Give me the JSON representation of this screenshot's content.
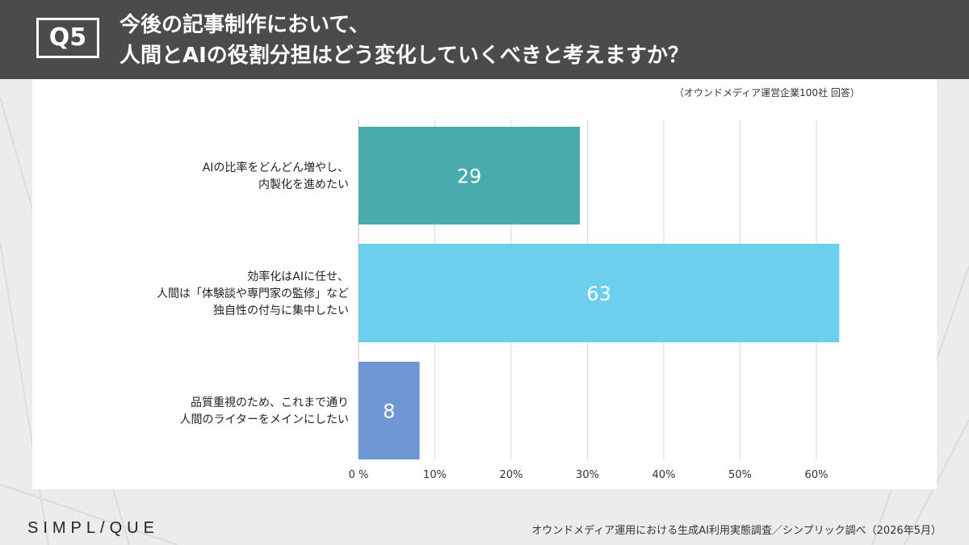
{
  "header": {
    "badge": "Q5",
    "title_line1": "今後の記事制作において、",
    "title_line2": "人間とAIの役割分担はどう変化していくべきと考えますか？"
  },
  "respondents_note": "（オウンドメディア運営企業100社 回答）",
  "footer": {
    "logo": "SIMPL/QUE",
    "source": "オウンドメディア運用における生成AI利用実態調査／シンプリック調べ（2026年5月）"
  },
  "colors": {
    "header_bg": "#4b4b4b",
    "bar_teal": "#4aabad",
    "bar_sky": "#6dcfee",
    "bar_blue": "#6e97d4"
  },
  "chart_data": {
    "type": "bar",
    "orientation": "horizontal",
    "categories": [
      [
        "AIの比率をどんどん増やし、",
        "内製化を進めたい"
      ],
      [
        "効率化はAIに任せ、",
        "人間は「体験談や専門家の監修」など",
        "独自性の付与に集中したい"
      ],
      [
        "品質重視のため、これまで通り",
        "人間のライターをメインにしたい"
      ]
    ],
    "values": [
      29,
      63,
      8
    ],
    "data_labels": [
      "29",
      "63",
      "8"
    ],
    "bar_colors": [
      "#4aabad",
      "#6dcfee",
      "#6e97d4"
    ],
    "x_ticks": [
      0,
      10,
      20,
      30,
      40,
      50,
      60
    ],
    "x_tick_labels": [
      "0 %",
      "10%",
      "20%",
      "30%",
      "40%",
      "50%",
      "60%"
    ],
    "xlim": [
      0,
      70
    ],
    "grid": true,
    "legend": "none"
  }
}
